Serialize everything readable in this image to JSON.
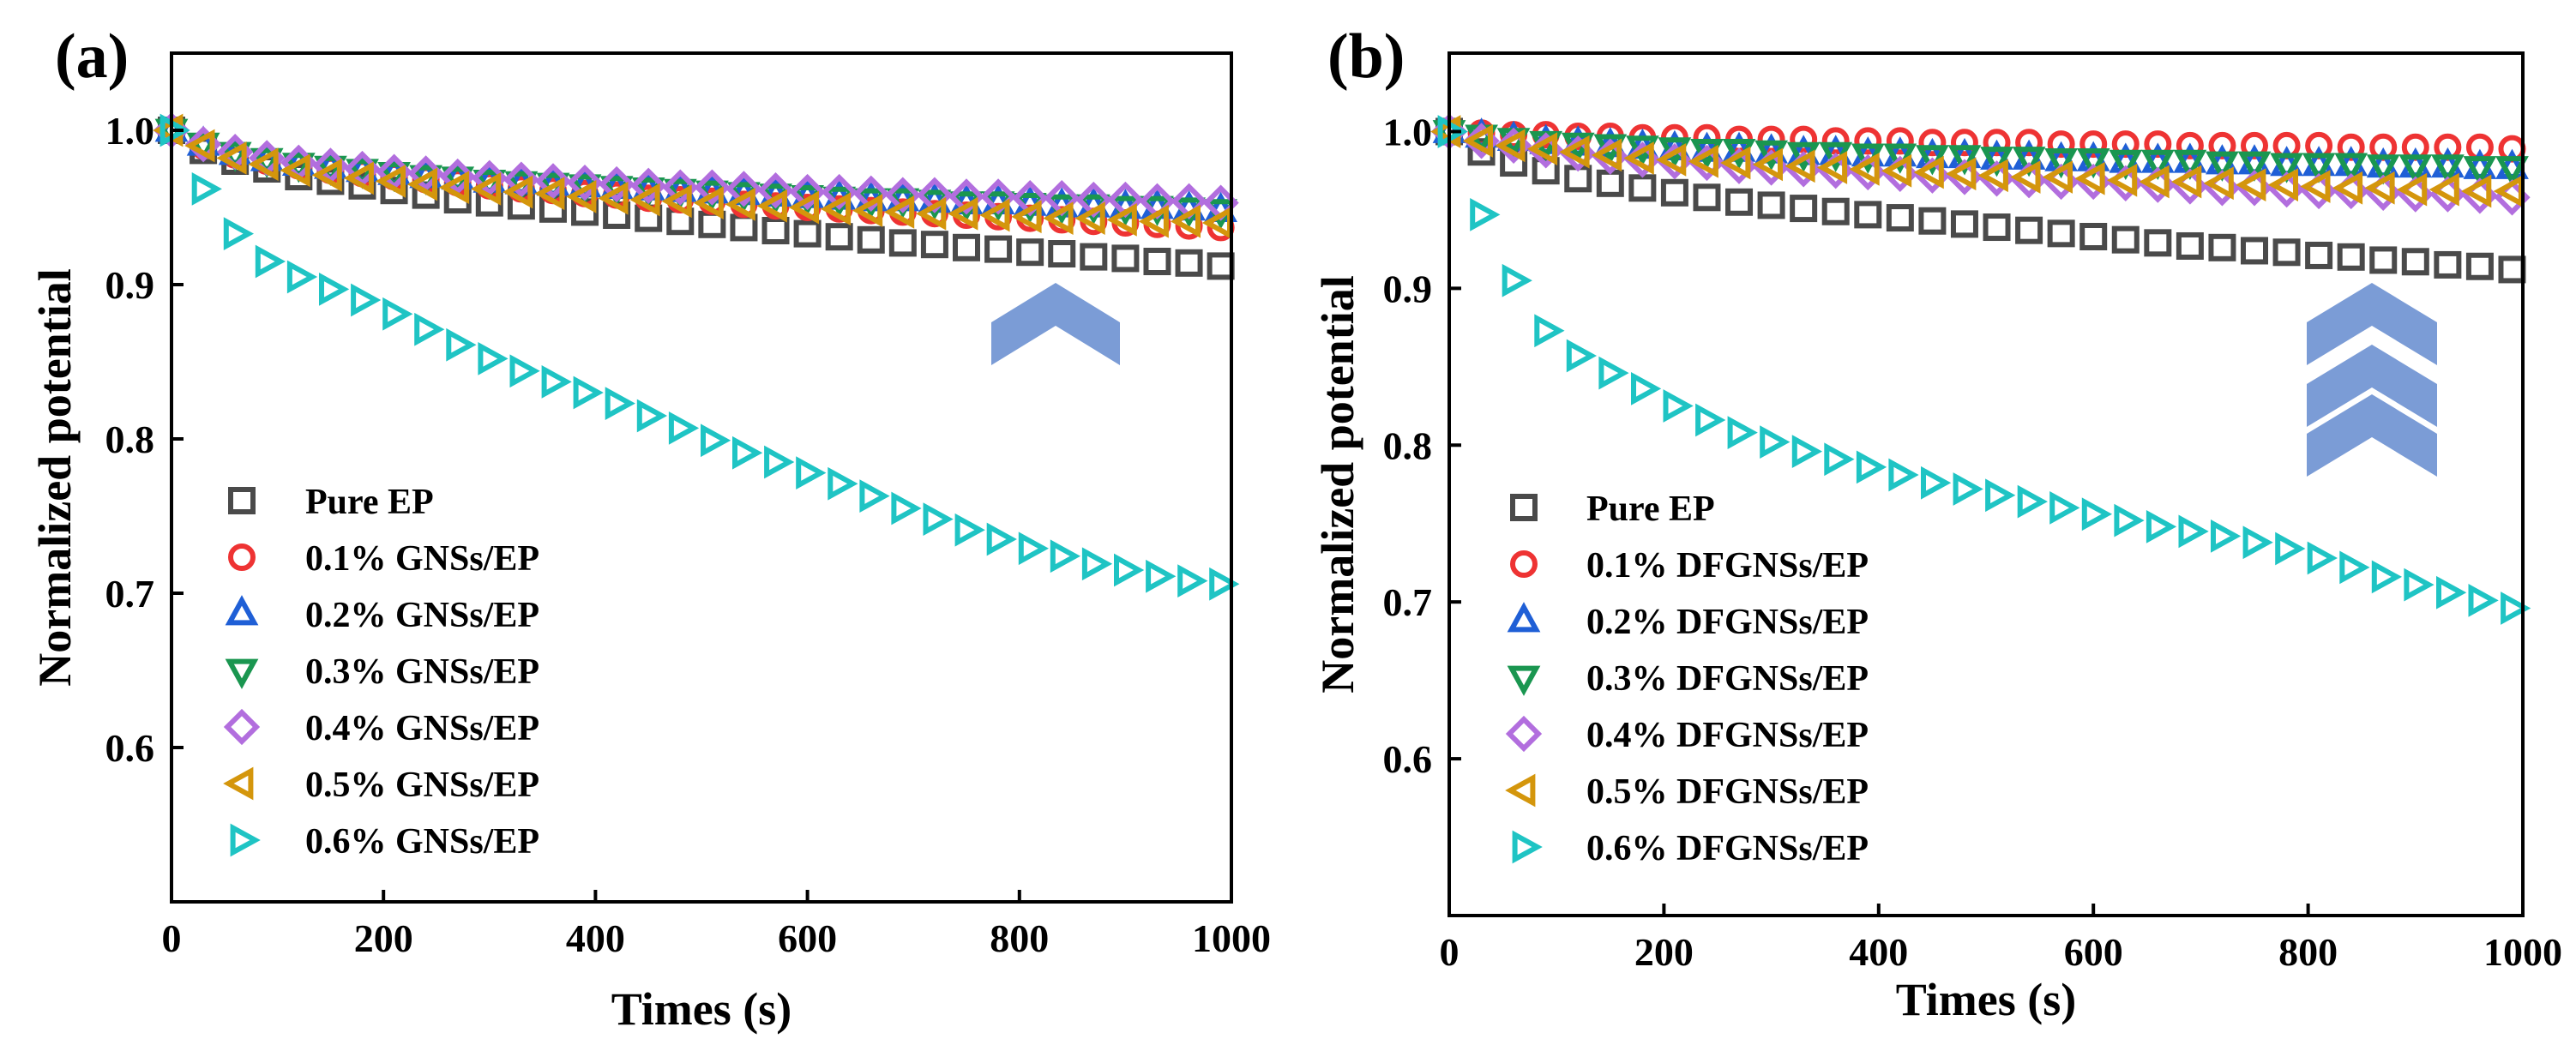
{
  "chart_data": [
    {
      "type": "scatter",
      "panel_label": "(a)",
      "xlabel": "Times (s)",
      "ylabel": "Normalized potential",
      "xlim": [
        0,
        1000
      ],
      "ylim": [
        0.5,
        1.05
      ],
      "xticks": [
        0,
        200,
        400,
        600,
        800,
        1000
      ],
      "yticks": [
        0.6,
        0.7,
        0.8,
        0.9,
        1.0
      ],
      "xtick_labels": [
        "0",
        "200",
        "400",
        "600",
        "800",
        "1000"
      ],
      "ytick_labels": [
        "0.6",
        "0.7",
        "0.8",
        "0.9",
        "1.0"
      ],
      "legend_position": "lower-left",
      "annotation": "single upward chevron",
      "x": [
        0,
        30,
        60,
        90,
        120,
        150,
        180,
        210,
        240,
        270,
        300,
        330,
        360,
        390,
        420,
        450,
        480,
        510,
        540,
        570,
        600,
        630,
        660,
        690,
        720,
        750,
        780,
        810,
        840,
        870,
        900,
        930,
        960,
        990
      ],
      "series": [
        {
          "name": "Pure EP",
          "marker": "square",
          "color": "#4a4a4a",
          "values": [
            1.0,
            0.987,
            0.98,
            0.975,
            0.97,
            0.967,
            0.964,
            0.961,
            0.958,
            0.955,
            0.953,
            0.951,
            0.949,
            0.947,
            0.945,
            0.943,
            0.941,
            0.939,
            0.937,
            0.935,
            0.933,
            0.931,
            0.929,
            0.927,
            0.926,
            0.924,
            0.923,
            0.921,
            0.92,
            0.918,
            0.917,
            0.915,
            0.914,
            0.912
          ]
        },
        {
          "name": "0.1% GNSs/EP",
          "marker": "circle",
          "color": "#ee3333",
          "values": [
            1.0,
            0.99,
            0.984,
            0.98,
            0.977,
            0.974,
            0.972,
            0.97,
            0.968,
            0.966,
            0.964,
            0.962,
            0.961,
            0.959,
            0.958,
            0.956,
            0.955,
            0.954,
            0.952,
            0.951,
            0.95,
            0.949,
            0.948,
            0.947,
            0.946,
            0.945,
            0.944,
            0.943,
            0.942,
            0.941,
            0.94,
            0.939,
            0.938,
            0.937
          ]
        },
        {
          "name": "0.2% GNSs/EP",
          "marker": "triangle-up",
          "color": "#1f5fd6",
          "values": [
            1.0,
            0.991,
            0.985,
            0.981,
            0.978,
            0.976,
            0.974,
            0.972,
            0.97,
            0.969,
            0.967,
            0.966,
            0.965,
            0.964,
            0.963,
            0.962,
            0.961,
            0.96,
            0.959,
            0.958,
            0.957,
            0.956,
            0.955,
            0.955,
            0.954,
            0.953,
            0.953,
            0.952,
            0.951,
            0.951,
            0.95,
            0.95,
            0.949,
            0.948
          ]
        },
        {
          "name": "0.3% GNSs/EP",
          "marker": "triangle-down",
          "color": "#1a9650",
          "values": [
            1.0,
            0.991,
            0.985,
            0.981,
            0.978,
            0.976,
            0.974,
            0.972,
            0.97,
            0.969,
            0.967,
            0.966,
            0.965,
            0.964,
            0.963,
            0.962,
            0.961,
            0.96,
            0.959,
            0.958,
            0.957,
            0.956,
            0.955,
            0.955,
            0.954,
            0.953,
            0.953,
            0.952,
            0.951,
            0.951,
            0.95,
            0.95,
            0.949,
            0.948
          ]
        },
        {
          "name": "0.4% GNSs/EP",
          "marker": "diamond",
          "color": "#b26ede",
          "values": [
            1.0,
            0.991,
            0.986,
            0.982,
            0.979,
            0.977,
            0.975,
            0.973,
            0.972,
            0.97,
            0.969,
            0.968,
            0.967,
            0.966,
            0.965,
            0.964,
            0.963,
            0.963,
            0.962,
            0.961,
            0.96,
            0.96,
            0.959,
            0.958,
            0.958,
            0.957,
            0.957,
            0.956,
            0.956,
            0.955,
            0.955,
            0.954,
            0.954,
            0.953
          ]
        },
        {
          "name": "0.5% GNSs/EP",
          "marker": "triangle-left",
          "color": "#d4960c",
          "values": [
            1.0,
            0.99,
            0.982,
            0.978,
            0.974,
            0.971,
            0.969,
            0.967,
            0.965,
            0.963,
            0.962,
            0.96,
            0.959,
            0.957,
            0.956,
            0.955,
            0.954,
            0.953,
            0.952,
            0.951,
            0.95,
            0.949,
            0.948,
            0.947,
            0.946,
            0.946,
            0.945,
            0.944,
            0.943,
            0.943,
            0.942,
            0.941,
            0.941,
            0.94
          ]
        },
        {
          "name": "0.6% GNSs/EP",
          "marker": "triangle-right",
          "color": "#1fc4c4",
          "values": [
            1.0,
            0.962,
            0.933,
            0.915,
            0.905,
            0.897,
            0.89,
            0.881,
            0.871,
            0.861,
            0.852,
            0.844,
            0.837,
            0.83,
            0.823,
            0.815,
            0.807,
            0.799,
            0.791,
            0.785,
            0.778,
            0.771,
            0.763,
            0.755,
            0.748,
            0.741,
            0.735,
            0.729,
            0.724,
            0.719,
            0.715,
            0.711,
            0.708,
            0.706
          ]
        }
      ]
    },
    {
      "type": "scatter",
      "panel_label": "(b)",
      "xlabel": "Times (s)",
      "ylabel": "Normalized potential",
      "xlim": [
        0,
        1000
      ],
      "ylim": [
        0.5,
        1.05
      ],
      "xticks": [
        0,
        200,
        400,
        600,
        800,
        1000
      ],
      "yticks": [
        0.6,
        0.7,
        0.8,
        0.9,
        1.0
      ],
      "xtick_labels": [
        "0",
        "200",
        "400",
        "600",
        "800",
        "1000"
      ],
      "ytick_labels": [
        "0.6",
        "0.7",
        "0.8",
        "0.9",
        "1.0"
      ],
      "legend_position": "lower-left",
      "annotation": "triple upward chevron",
      "x": [
        0,
        30,
        60,
        90,
        120,
        150,
        180,
        210,
        240,
        270,
        300,
        330,
        360,
        390,
        420,
        450,
        480,
        510,
        540,
        570,
        600,
        630,
        660,
        690,
        720,
        750,
        780,
        810,
        840,
        870,
        900,
        930,
        960,
        990
      ],
      "series": [
        {
          "name": "Pure EP",
          "marker": "square",
          "color": "#4a4a4a",
          "values": [
            1.0,
            0.987,
            0.98,
            0.975,
            0.97,
            0.967,
            0.964,
            0.961,
            0.958,
            0.955,
            0.953,
            0.951,
            0.949,
            0.947,
            0.945,
            0.943,
            0.941,
            0.939,
            0.937,
            0.935,
            0.933,
            0.931,
            0.929,
            0.927,
            0.926,
            0.924,
            0.923,
            0.921,
            0.92,
            0.918,
            0.917,
            0.915,
            0.914,
            0.912
          ]
        },
        {
          "name": "0.1% DFGNSs/EP",
          "marker": "circle",
          "color": "#ee3333",
          "values": [
            1.0,
            0.999,
            0.998,
            0.998,
            0.997,
            0.997,
            0.996,
            0.996,
            0.996,
            0.995,
            0.995,
            0.995,
            0.994,
            0.994,
            0.994,
            0.993,
            0.993,
            0.993,
            0.993,
            0.992,
            0.992,
            0.992,
            0.992,
            0.991,
            0.991,
            0.991,
            0.991,
            0.991,
            0.99,
            0.99,
            0.99,
            0.99,
            0.99,
            0.989
          ]
        },
        {
          "name": "0.2% DFGNSs/EP",
          "marker": "triangle-up",
          "color": "#1f5fd6",
          "values": [
            1.0,
            0.997,
            0.995,
            0.993,
            0.992,
            0.991,
            0.99,
            0.989,
            0.988,
            0.988,
            0.987,
            0.986,
            0.986,
            0.985,
            0.985,
            0.984,
            0.984,
            0.983,
            0.983,
            0.982,
            0.982,
            0.981,
            0.981,
            0.981,
            0.98,
            0.98,
            0.979,
            0.979,
            0.979,
            0.978,
            0.978,
            0.978,
            0.977,
            0.977
          ]
        },
        {
          "name": "0.3% DFGNSs/EP",
          "marker": "triangle-down",
          "color": "#1a9650",
          "values": [
            1.0,
            0.997,
            0.995,
            0.993,
            0.992,
            0.991,
            0.99,
            0.989,
            0.988,
            0.988,
            0.987,
            0.986,
            0.986,
            0.985,
            0.985,
            0.984,
            0.984,
            0.983,
            0.983,
            0.982,
            0.982,
            0.981,
            0.981,
            0.981,
            0.98,
            0.98,
            0.979,
            0.979,
            0.979,
            0.978,
            0.978,
            0.978,
            0.977,
            0.977
          ]
        },
        {
          "name": "0.4% DFGNSs/EP",
          "marker": "diamond",
          "color": "#b26ede",
          "values": [
            1.0,
            0.994,
            0.991,
            0.988,
            0.986,
            0.984,
            0.982,
            0.981,
            0.98,
            0.978,
            0.977,
            0.976,
            0.975,
            0.974,
            0.973,
            0.972,
            0.971,
            0.97,
            0.969,
            0.968,
            0.968,
            0.967,
            0.966,
            0.965,
            0.964,
            0.964,
            0.963,
            0.962,
            0.962,
            0.961,
            0.96,
            0.96,
            0.959,
            0.958
          ]
        },
        {
          "name": "0.5% DFGNSs/EP",
          "marker": "triangle-left",
          "color": "#d4960c",
          "values": [
            1.0,
            0.994,
            0.991,
            0.989,
            0.987,
            0.985,
            0.983,
            0.982,
            0.981,
            0.98,
            0.979,
            0.978,
            0.977,
            0.976,
            0.975,
            0.974,
            0.973,
            0.972,
            0.971,
            0.971,
            0.97,
            0.969,
            0.968,
            0.968,
            0.967,
            0.966,
            0.966,
            0.965,
            0.964,
            0.964,
            0.963,
            0.963,
            0.962,
            0.962
          ]
        },
        {
          "name": "0.6% DFGNSs/EP",
          "marker": "triangle-right",
          "color": "#1fc4c4",
          "values": [
            1.0,
            0.947,
            0.905,
            0.873,
            0.857,
            0.846,
            0.836,
            0.825,
            0.816,
            0.808,
            0.802,
            0.796,
            0.791,
            0.786,
            0.781,
            0.776,
            0.772,
            0.768,
            0.764,
            0.76,
            0.756,
            0.752,
            0.748,
            0.745,
            0.742,
            0.738,
            0.734,
            0.728,
            0.722,
            0.716,
            0.711,
            0.706,
            0.701,
            0.696
          ]
        }
      ]
    }
  ]
}
